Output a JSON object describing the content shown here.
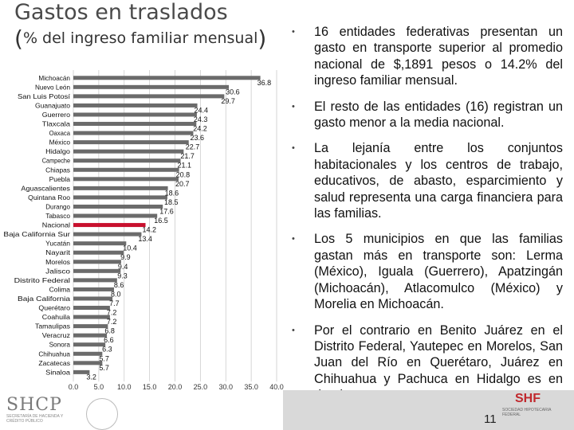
{
  "title": "Gastos en traslados",
  "subtitle": {
    "open": "(",
    "text": "% del ingreso familiar mensual",
    "close": ")"
  },
  "chart_data": {
    "type": "bar",
    "orientation": "horizontal",
    "categories": [
      "Michoacán",
      "Nuevo León",
      "San Luis Potosí",
      "Guanajuato",
      "Guerrero",
      "Tlaxcala",
      "Oaxaca",
      "México",
      "Hidalgo",
      "Campeche",
      "Chiapas",
      "Puebla",
      "Aguascalientes",
      "Quintana Roo",
      "Durango",
      "Tabasco",
      "Nacional",
      "Baja California Sur",
      "Yucatán",
      "Nayarit",
      "Morelos",
      "Jalisco",
      "Distrito Federal",
      "Colima",
      "Baja California",
      "Querétaro",
      "Coahuila",
      "Tamaulipas",
      "Veracruz",
      "Sonora",
      "Chihuahua",
      "Zacatecas",
      "Sinaloa"
    ],
    "values": [
      36.8,
      30.6,
      29.7,
      24.4,
      24.3,
      24.2,
      23.6,
      22.7,
      21.7,
      21.1,
      20.8,
      20.7,
      18.6,
      18.5,
      17.6,
      16.5,
      14.2,
      13.4,
      10.4,
      9.9,
      9.4,
      9.3,
      8.6,
      8.0,
      7.7,
      7.2,
      7.2,
      6.8,
      6.6,
      6.3,
      5.7,
      5.7,
      3.2
    ],
    "labels": [
      "36.8",
      "30.6",
      "29.7",
      "24.4",
      "24.3",
      "24.2",
      "23.6",
      "22.7",
      "21.7",
      "21.1",
      "20.8",
      "20.7",
      "18.6",
      "18.5",
      "17.6",
      "16.5",
      "14.2",
      "13.4",
      "10.4",
      "9.9",
      "9.4",
      "9.3",
      "8.6",
      "8.0",
      "7.7",
      "7.2",
      "7.2",
      "6.8",
      "6.6",
      "6.3",
      "5.7",
      "5.7",
      "3.2"
    ],
    "highlight": "Nacional",
    "colors": {
      "bar": "#6b6b6b",
      "highlight": "#c8102e",
      "axis": "#cccccc"
    },
    "xticks": [
      "0.0",
      "5.0",
      "10.0",
      "15.0",
      "20.0",
      "25.0",
      "30.0",
      "35.0",
      "40.0"
    ],
    "xlim": [
      0,
      40
    ],
    "title": "",
    "xlabel": "",
    "ylabel": ""
  },
  "bullets": [
    "16 entidades federativas presentan un gasto en transporte superior al promedio nacional de $,1891 pesos o 14.2% del ingreso familiar mensual.",
    "El resto de las entidades (16) registran un gasto menor a la media nacional.",
    "La lejanía entre los conjuntos habitacionales y los centros de trabajo, educativos, de abasto, esparcimiento y salud representa una carga financiera para las familias.",
    "Los 5 municipios en que las familias gastan más en transporte son: Lerma (México), Iguala (Guerrero), Apatzingán (Michoacán), Atlacomulco (México) y Morelia en Michoacán.",
    "Por el contrario en Benito Juárez en el Distrito Federal, Yautepec en Morelos, San Juan del Río en Querétaro, Juárez en Chihuahua y Pachuca en Hidalgo es en donde menos se gasta en transporte, es decir, los conjuntos están mejor ubicados."
  ],
  "bullet_symbol": "•",
  "footer": {
    "left_logo": "SHCP",
    "left_logo_sub": "SECRETARÍA DE HACIENDA Y CRÉDITO PÚBLICO",
    "right_logo": "SHF",
    "right_logo_sub": "SOCIEDAD HIPOTECARIA FEDERAL",
    "page_number": "11"
  }
}
